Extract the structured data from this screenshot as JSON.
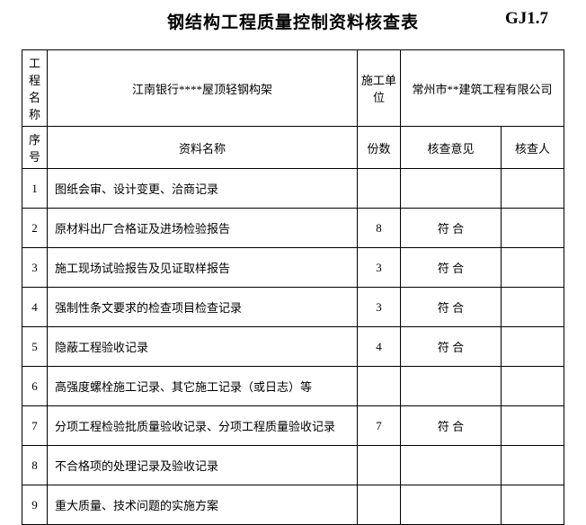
{
  "title": "钢结构工程质量控制资料核查表",
  "code": "GJ1.7",
  "header": {
    "projectNameLabel": "工程名称",
    "projectNameValue": "江南银行****屋顶轻钢构架",
    "unitLabel": "施工单位",
    "unitValue": "常州市**建筑工程有限公司"
  },
  "columns": {
    "seq": "序号",
    "itemName": "资料名称",
    "copies": "份数",
    "opinion": "核查意见",
    "checker": "核查人"
  },
  "rows": [
    {
      "seq": "1",
      "itemName": "图纸会审、设计变更、洽商记录",
      "copies": "",
      "opinion": "",
      "checker": ""
    },
    {
      "seq": "2",
      "itemName": "原材料出厂合格证及进场检验报告",
      "copies": "8",
      "opinion": "符 合",
      "checker": ""
    },
    {
      "seq": "3",
      "itemName": "施工现场试验报告及见证取样报告",
      "copies": "3",
      "opinion": "符 合",
      "checker": ""
    },
    {
      "seq": "4",
      "itemName": "强制性条文要求的检查项目检查记录",
      "copies": "3",
      "opinion": "符 合",
      "checker": ""
    },
    {
      "seq": "5",
      "itemName": "隐蔽工程验收记录",
      "copies": "4",
      "opinion": "符 合",
      "checker": ""
    },
    {
      "seq": "6",
      "itemName": "高强度螺栓施工记录、其它施工记录（或日志）等",
      "copies": "",
      "opinion": "",
      "checker": ""
    },
    {
      "seq": "7",
      "itemName": "分项工程检验批质量验收记录、分项工程质量验收记录",
      "copies": "7",
      "opinion": "符 合",
      "checker": ""
    },
    {
      "seq": "8",
      "itemName": "不合格项的处理记录及验收记录",
      "copies": "",
      "opinion": "",
      "checker": ""
    },
    {
      "seq": "9",
      "itemName": "重大质量、技术问题的实施方案",
      "copies": "",
      "opinion": "",
      "checker": ""
    }
  ]
}
